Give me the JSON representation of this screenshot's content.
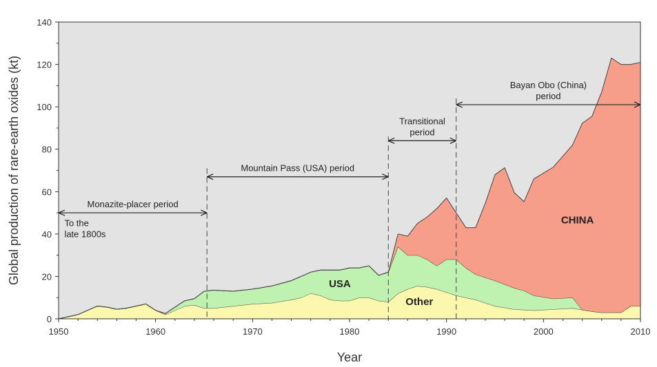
{
  "chart_data": {
    "type": "area",
    "title": "",
    "xlabel": "Year",
    "ylabel": "Global production of rare-earth oxides (kt)",
    "xlim": [
      1950,
      2010
    ],
    "ylim": [
      0,
      140
    ],
    "x_ticks": [
      1950,
      1960,
      1970,
      1980,
      1990,
      2000,
      2010
    ],
    "y_ticks": [
      0,
      20,
      40,
      60,
      80,
      100,
      120,
      140
    ],
    "stacked": true,
    "grid": false,
    "background": "#e3e3e3",
    "series": [
      {
        "name": "Other",
        "color": "#fbf7ad",
        "points": [
          [
            1950,
            0
          ],
          [
            1952,
            2
          ],
          [
            1953,
            4
          ],
          [
            1954,
            6
          ],
          [
            1955,
            5.5
          ],
          [
            1956,
            4.5
          ],
          [
            1957,
            5
          ],
          [
            1958,
            6
          ],
          [
            1959,
            7
          ],
          [
            1960,
            4
          ],
          [
            1961,
            2
          ],
          [
            1962,
            4
          ],
          [
            1963,
            6
          ],
          [
            1964,
            6.5
          ],
          [
            1965,
            5
          ],
          [
            1966,
            5
          ],
          [
            1968,
            6
          ],
          [
            1970,
            7
          ],
          [
            1972,
            7.5
          ],
          [
            1974,
            9
          ],
          [
            1975,
            10
          ],
          [
            1976,
            12
          ],
          [
            1977,
            11
          ],
          [
            1978,
            9
          ],
          [
            1979,
            8.5
          ],
          [
            1980,
            8.5
          ],
          [
            1981,
            10
          ],
          [
            1982,
            10
          ],
          [
            1983,
            8.5
          ],
          [
            1984,
            8
          ],
          [
            1985,
            12
          ],
          [
            1986,
            14
          ],
          [
            1987,
            15.5
          ],
          [
            1988,
            15
          ],
          [
            1989,
            14
          ],
          [
            1990,
            12.5
          ],
          [
            1991,
            11
          ],
          [
            1993,
            9
          ],
          [
            1995,
            6
          ],
          [
            1997,
            4.5
          ],
          [
            1999,
            4
          ],
          [
            2001,
            4.5
          ],
          [
            2003,
            5
          ],
          [
            2005,
            3.5
          ],
          [
            2006,
            3
          ],
          [
            2008,
            3
          ],
          [
            2009,
            6
          ],
          [
            2010,
            6
          ]
        ]
      },
      {
        "name": "USA",
        "color": "#bff2b0",
        "points": [
          [
            1950,
            0
          ],
          [
            1960,
            0
          ],
          [
            1961,
            0.5
          ],
          [
            1962,
            1.5
          ],
          [
            1963,
            2.5
          ],
          [
            1964,
            3
          ],
          [
            1965,
            8
          ],
          [
            1966,
            8.5
          ],
          [
            1968,
            7
          ],
          [
            1970,
            7
          ],
          [
            1972,
            8
          ],
          [
            1974,
            9
          ],
          [
            1975,
            10
          ],
          [
            1976,
            10
          ],
          [
            1977,
            12
          ],
          [
            1978,
            14
          ],
          [
            1979,
            14.5
          ],
          [
            1980,
            15.5
          ],
          [
            1981,
            14
          ],
          [
            1982,
            15
          ],
          [
            1983,
            12
          ],
          [
            1984,
            14
          ],
          [
            1985,
            22
          ],
          [
            1986,
            16
          ],
          [
            1987,
            14.5
          ],
          [
            1988,
            13
          ],
          [
            1989,
            11
          ],
          [
            1990,
            15.5
          ],
          [
            1991,
            17
          ],
          [
            1992,
            14
          ],
          [
            1993,
            12
          ],
          [
            1994,
            12
          ],
          [
            1995,
            12
          ],
          [
            1996,
            11
          ],
          [
            1997,
            10
          ],
          [
            1998,
            9
          ],
          [
            1999,
            7
          ],
          [
            2001,
            5
          ],
          [
            2003,
            5
          ],
          [
            2004,
            0
          ],
          [
            2010,
            0
          ]
        ]
      },
      {
        "name": "CHINA",
        "color": "#f69e89",
        "points": [
          [
            1950,
            0
          ],
          [
            1984,
            0
          ],
          [
            1985,
            6
          ],
          [
            1986,
            9
          ],
          [
            1987,
            15
          ],
          [
            1988,
            20
          ],
          [
            1989,
            27
          ],
          [
            1990,
            29
          ],
          [
            1991,
            22
          ],
          [
            1992,
            19
          ],
          [
            1993,
            22
          ],
          [
            1994,
            35
          ],
          [
            1995,
            50
          ],
          [
            1996,
            55
          ],
          [
            1997,
            45
          ],
          [
            1998,
            42
          ],
          [
            1999,
            55
          ],
          [
            2001,
            62
          ],
          [
            2003,
            72
          ],
          [
            2004,
            88
          ],
          [
            2005,
            92
          ],
          [
            2006,
            104
          ],
          [
            2007,
            120
          ],
          [
            2008,
            117
          ],
          [
            2009,
            114
          ],
          [
            2010,
            115
          ]
        ]
      }
    ],
    "periods": [
      {
        "label_lines": [
          "Monazite-placer period"
        ],
        "start": 1950,
        "end": 1965.3,
        "y": 50
      },
      {
        "label_lines": [
          "Mountain Pass (USA) period"
        ],
        "start": 1965.3,
        "end": 1984,
        "y": 67
      },
      {
        "label_lines": [
          "Transitional",
          "period"
        ],
        "start": 1984,
        "end": 1991,
        "y": 84
      },
      {
        "label_lines": [
          "Bayan Obo (China)",
          "period"
        ],
        "start": 1991,
        "end": 2010,
        "y": 101
      }
    ],
    "period_boundaries": [
      {
        "x": 1965.3,
        "y_top": 71
      },
      {
        "x": 1984,
        "y_top": 86
      },
      {
        "x": 1991,
        "y_top": 104
      }
    ],
    "annotations": [
      {
        "lines": [
          "To the",
          "late 1800s"
        ],
        "x": 1950.6,
        "y": 45
      }
    ],
    "area_labels": [
      {
        "text": "USA",
        "x": 1979,
        "y": 15
      },
      {
        "text": "Other",
        "x": 1987.2,
        "y": 6.5
      },
      {
        "text": "CHINA",
        "x": 2003.5,
        "y": 45
      }
    ]
  }
}
